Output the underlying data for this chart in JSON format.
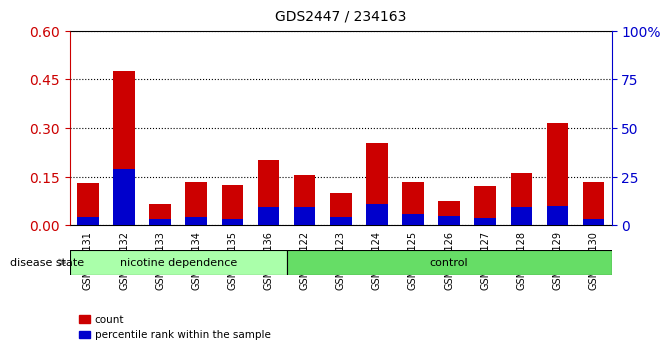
{
  "title": "GDS2447 / 234163",
  "samples": [
    "GSM144131",
    "GSM144132",
    "GSM144133",
    "GSM144134",
    "GSM144135",
    "GSM144136",
    "GSM144122",
    "GSM144123",
    "GSM144124",
    "GSM144125",
    "GSM144126",
    "GSM144127",
    "GSM144128",
    "GSM144129",
    "GSM144130"
  ],
  "count_values": [
    0.13,
    0.475,
    0.065,
    0.135,
    0.125,
    0.2,
    0.155,
    0.1,
    0.255,
    0.135,
    0.075,
    0.12,
    0.162,
    0.315,
    0.135
  ],
  "percentile_values": [
    0.025,
    0.175,
    0.018,
    0.025,
    0.02,
    0.055,
    0.055,
    0.025,
    0.065,
    0.035,
    0.03,
    0.022,
    0.055,
    0.06,
    0.02
  ],
  "group1_label": "nicotine dependence",
  "group2_label": "control",
  "group1_count": 6,
  "group2_count": 9,
  "ylim_left": [
    0,
    0.6
  ],
  "ylim_right": [
    0,
    100
  ],
  "yticks_left": [
    0,
    0.15,
    0.3,
    0.45,
    0.6
  ],
  "yticks_right": [
    0,
    25,
    50,
    75,
    100
  ],
  "left_color": "#cc0000",
  "right_color": "#0000cc",
  "group1_color": "#aaffaa",
  "group2_color": "#66dd66",
  "bar_width": 0.6,
  "legend_count_label": "count",
  "legend_percentile_label": "percentile rank within the sample",
  "disease_state_label": "disease state"
}
